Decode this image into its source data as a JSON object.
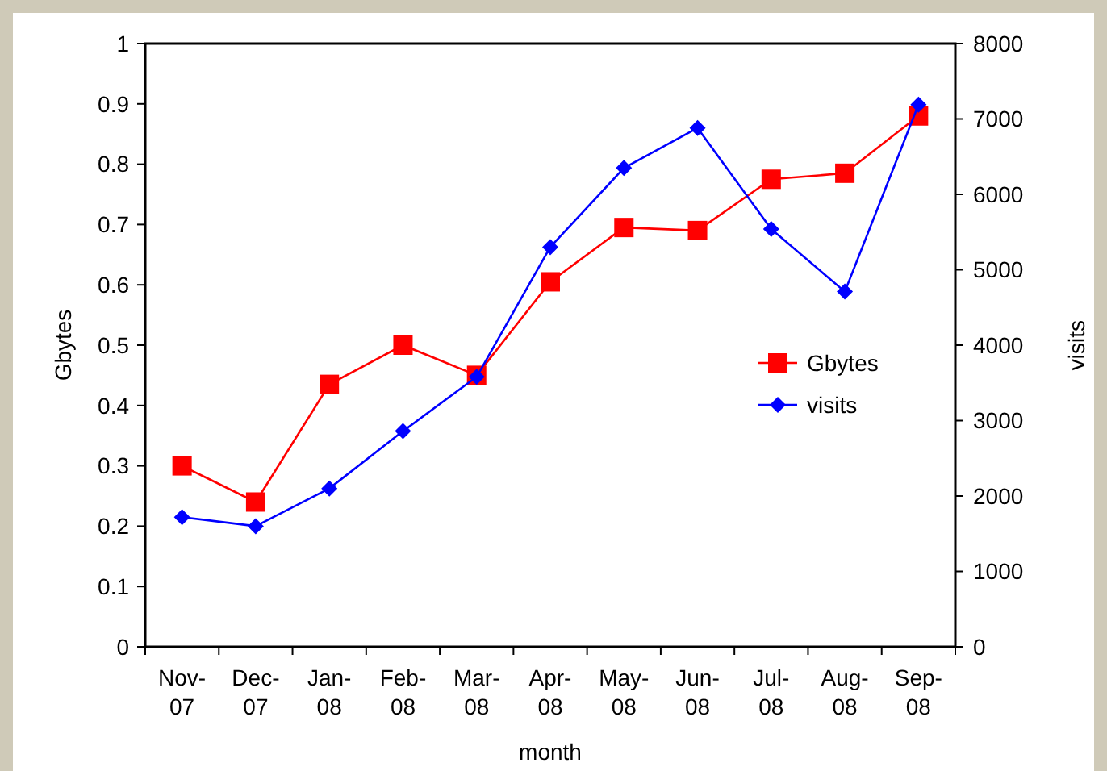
{
  "chart_data": {
    "type": "line",
    "xlabel": "month",
    "ylabel": "Gbytes",
    "y2label": "visits",
    "categories": [
      "Nov-07",
      "Dec-07",
      "Jan-08",
      "Feb-08",
      "Mar-08",
      "Apr-08",
      "May-08",
      "Jun-08",
      "Jul-08",
      "Aug-08",
      "Sep-08"
    ],
    "series": [
      {
        "name": "Gbytes",
        "color": "#ff0000",
        "marker": "square",
        "values": [
          0.3,
          0.24,
          0.435,
          0.5,
          0.45,
          0.605,
          0.695,
          0.69,
          0.775,
          0.785,
          0.88
        ]
      },
      {
        "name": "visits",
        "color": "#0000ff",
        "marker": "diamond",
        "axis": "y2",
        "values": [
          1720,
          1600,
          2100,
          2860,
          3580,
          5300,
          6350,
          6880,
          5540,
          4710,
          7190
        ]
      }
    ],
    "ylim": [
      0,
      1
    ],
    "yticks": [
      0,
      0.1,
      0.2,
      0.3,
      0.4,
      0.5,
      0.6,
      0.7,
      0.8,
      0.9,
      1
    ],
    "y2lim": [
      0,
      8000
    ],
    "y2ticks": [
      0,
      1000,
      2000,
      3000,
      4000,
      5000,
      6000,
      7000,
      8000
    ],
    "legend": "right",
    "grid": false
  }
}
